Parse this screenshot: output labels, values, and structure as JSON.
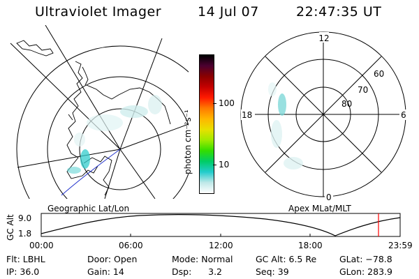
{
  "header": {
    "instrument": "Ultraviolet Imager",
    "date": "14 Jul 07",
    "time": "22:47:35 UT"
  },
  "geographic_panel": {
    "label": "Geographic Lat/Lon"
  },
  "apex_panel": {
    "label": "Apex MLat/MLT",
    "mlt_labels": [
      "12",
      "18",
      "6",
      "0"
    ],
    "mlat_labels": [
      "60",
      "70",
      "80"
    ]
  },
  "colorbar": {
    "unit_label": "photon cm⁻²s⁻¹",
    "ticks": [
      "100",
      "10"
    ],
    "colors": [
      "#000000",
      "#4b0030",
      "#8a0000",
      "#c40000",
      "#ff1a00",
      "#ff7a00",
      "#ffb600",
      "#e8e000",
      "#a0ea00",
      "#33dd00",
      "#00cc66",
      "#22cccc",
      "#bfe8e8",
      "#ffffff"
    ],
    "scale": "log"
  },
  "altitude_timeline": {
    "axis_label": "GC Alt",
    "y_ticks": [
      "9.0",
      "1.8"
    ],
    "x_ticks": [
      "00:00",
      "06:00",
      "12:00",
      "18:00",
      "23:59"
    ],
    "current_marker_color": "#ff0000"
  },
  "info": {
    "flt": "Flt: LBHL",
    "ip": "IP: 36.0",
    "door": "Door: Open",
    "gain": "Gain: 14",
    "mode": "Mode: Normal",
    "dsp": "Dsp:      3.2",
    "gc_alt": "GC Alt: 6.5 Re",
    "seq": "Seq: 39",
    "glat": "GLat: −78.8",
    "glon": "GLon: 283.9"
  }
}
